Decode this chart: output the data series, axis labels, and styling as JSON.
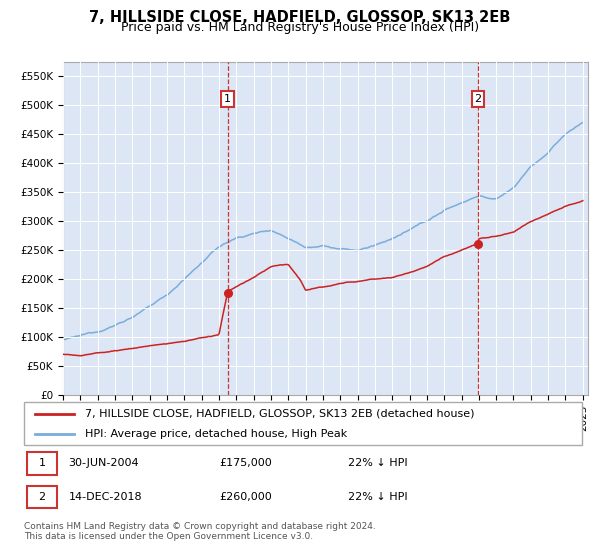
{
  "title": "7, HILLSIDE CLOSE, HADFIELD, GLOSSOP, SK13 2EB",
  "subtitle": "Price paid vs. HM Land Registry's House Price Index (HPI)",
  "ylabel_ticks": [
    "£0",
    "£50K",
    "£100K",
    "£150K",
    "£200K",
    "£250K",
    "£300K",
    "£350K",
    "£400K",
    "£450K",
    "£500K",
    "£550K"
  ],
  "ytick_values": [
    0,
    50000,
    100000,
    150000,
    200000,
    250000,
    300000,
    350000,
    400000,
    450000,
    500000,
    550000
  ],
  "ylim": [
    0,
    575000
  ],
  "xlim_start": 1995.0,
  "xlim_end": 2025.3,
  "xtick_years": [
    1995,
    1996,
    1997,
    1998,
    1999,
    2000,
    2001,
    2002,
    2003,
    2004,
    2005,
    2006,
    2007,
    2008,
    2009,
    2010,
    2011,
    2012,
    2013,
    2014,
    2015,
    2016,
    2017,
    2018,
    2019,
    2020,
    2021,
    2022,
    2023,
    2024,
    2025
  ],
  "hpi_color": "#7aaddb",
  "price_color": "#cc2222",
  "background_color": "#dce6f5",
  "plot_bg_color": "#dce6f5",
  "grid_color": "#ffffff",
  "marker1_x": 2004.5,
  "marker1_y": 175000,
  "marker1_label": "1",
  "marker1_date": "30-JUN-2004",
  "marker1_price": "£175,000",
  "marker1_hpi": "22% ↓ HPI",
  "marker2_x": 2018.96,
  "marker2_y": 260000,
  "marker2_label": "2",
  "marker2_date": "14-DEC-2018",
  "marker2_price": "£260,000",
  "marker2_hpi": "22% ↓ HPI",
  "legend_line1": "7, HILLSIDE CLOSE, HADFIELD, GLOSSOP, SK13 2EB (detached house)",
  "legend_line2": "HPI: Average price, detached house, High Peak",
  "footnote": "Contains HM Land Registry data © Crown copyright and database right 2024.\nThis data is licensed under the Open Government Licence v3.0.",
  "title_fontsize": 10.5,
  "subtitle_fontsize": 9,
  "tick_fontsize": 7.5,
  "legend_fontsize": 8,
  "info_fontsize": 8,
  "footnote_fontsize": 6.5
}
